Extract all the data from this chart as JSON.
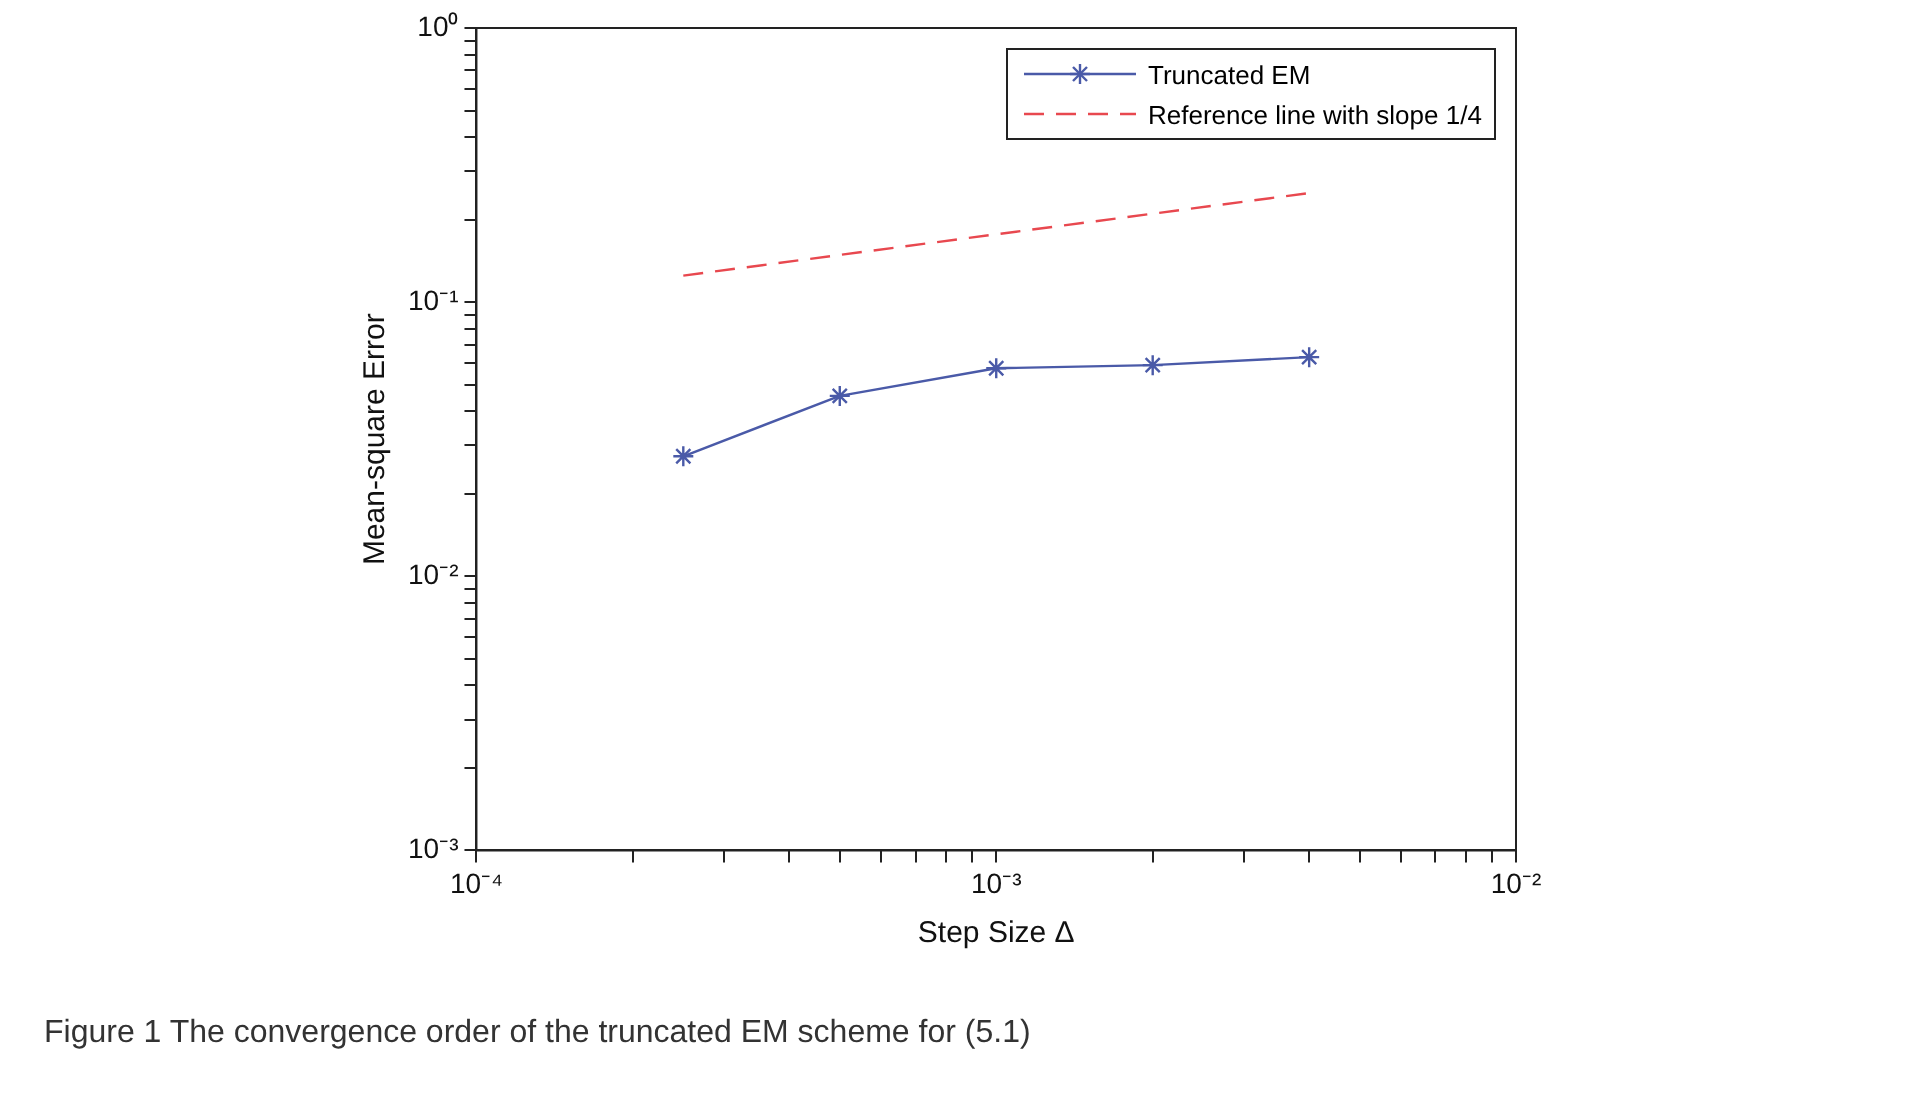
{
  "chart_data": {
    "type": "line",
    "xlabel": "Step Size Δ",
    "ylabel": "Mean-square Error",
    "annotations": [
      "Figure 1  The convergence order of the truncated EM scheme for (5.1)"
    ],
    "log": "xy",
    "grid": false,
    "legend": "top right",
    "xlim": [
      0.0001,
      0.01
    ],
    "ylim": [
      0.001,
      1
    ],
    "xticks": [
      {
        "value": 0.0001,
        "label": "10⁻⁴"
      },
      {
        "value": 0.0002,
        "label": null
      },
      {
        "value": 0.0003,
        "label": null
      },
      {
        "value": 0.0004,
        "label": null
      },
      {
        "value": 0.0005,
        "label": null
      },
      {
        "value": 0.0006,
        "label": null
      },
      {
        "value": 0.0007,
        "label": null
      },
      {
        "value": 0.0008,
        "label": null
      },
      {
        "value": 0.0009,
        "label": null
      },
      {
        "value": 0.001,
        "label": "10⁻³"
      },
      {
        "value": 0.002,
        "label": null
      },
      {
        "value": 0.003,
        "label": null
      },
      {
        "value": 0.004,
        "label": null
      },
      {
        "value": 0.005,
        "label": null
      },
      {
        "value": 0.006,
        "label": null
      },
      {
        "value": 0.007,
        "label": null
      },
      {
        "value": 0.008,
        "label": null
      },
      {
        "value": 0.009,
        "label": null
      },
      {
        "value": 0.01,
        "label": "10⁻²"
      }
    ],
    "yticks": [
      {
        "value": 0.001,
        "label": "10⁻³"
      },
      {
        "value": 0.002,
        "label": null
      },
      {
        "value": 0.003,
        "label": null
      },
      {
        "value": 0.004,
        "label": null
      },
      {
        "value": 0.005,
        "label": null
      },
      {
        "value": 0.006,
        "label": null
      },
      {
        "value": 0.007,
        "label": null
      },
      {
        "value": 0.008,
        "label": null
      },
      {
        "value": 0.009,
        "label": null
      },
      {
        "value": 0.01,
        "label": "10⁻²"
      },
      {
        "value": 0.02,
        "label": null
      },
      {
        "value": 0.03,
        "label": null
      },
      {
        "value": 0.04,
        "label": null
      },
      {
        "value": 0.05,
        "label": null
      },
      {
        "value": 0.06,
        "label": null
      },
      {
        "value": 0.07,
        "label": null
      },
      {
        "value": 0.08,
        "label": null
      },
      {
        "value": 0.09,
        "label": null
      },
      {
        "value": 0.1,
        "label": "10⁻¹"
      },
      {
        "value": 0.2,
        "label": null
      },
      {
        "value": 0.3,
        "label": null
      },
      {
        "value": 0.4,
        "label": null
      },
      {
        "value": 0.5,
        "label": null
      },
      {
        "value": 0.6,
        "label": null
      },
      {
        "value": 0.7,
        "label": null
      },
      {
        "value": 0.8,
        "label": null
      },
      {
        "value": 0.9,
        "label": null
      },
      {
        "value": 1,
        "label": "10⁰"
      }
    ],
    "series": [
      {
        "name": "Truncated EM",
        "color": "#4a5aa8",
        "marker": "cross",
        "line_style": "solid",
        "x": [
          0.00025,
          0.0005,
          0.001,
          0.002,
          0.004
        ],
        "values": [
          0.0274,
          0.0455,
          0.0574,
          0.0589,
          0.063
        ]
      },
      {
        "name": "Reference line with slope 1/4",
        "color": "#e8484f",
        "marker": "none",
        "line_style": "dashed",
        "x": [
          0.00025,
          0.004
        ],
        "values": [
          0.125,
          0.25
        ]
      }
    ]
  }
}
